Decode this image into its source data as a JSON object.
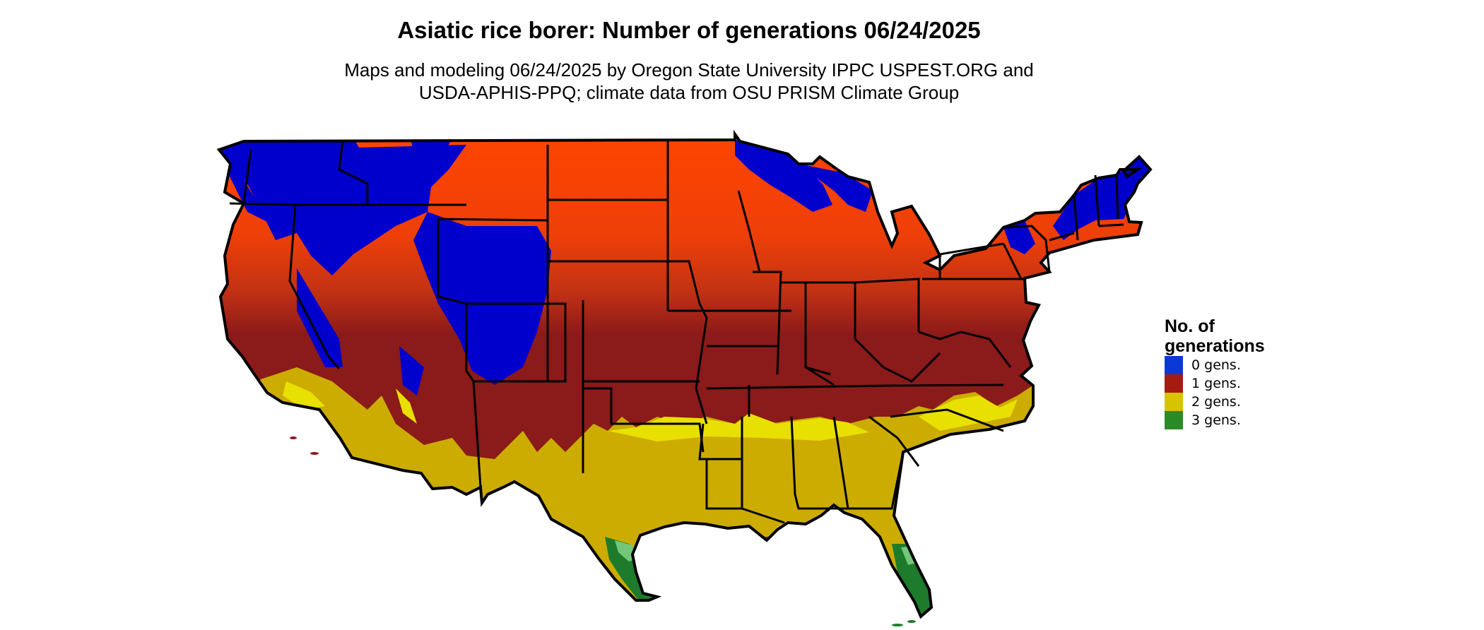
{
  "title": "Asiatic rice borer: Number of generations 06/24/2025",
  "subtitle_line1": "Maps and modeling 06/24/2025 by Oregon State University IPPC USPEST.ORG and",
  "subtitle_line2": "USDA-APHIS-PPQ; climate data from OSU PRISM Climate Group",
  "legend": {
    "title_line1": "No. of",
    "title_line2": "generations",
    "items": [
      {
        "label": "0 gens.",
        "color": "#0a38d6"
      },
      {
        "label": "1 gens.",
        "color": "#a51b12"
      },
      {
        "label": "2 gens.",
        "color": "#d6c400"
      },
      {
        "label": "3 gens.",
        "color": "#2b8a26"
      }
    ]
  },
  "map_colors": {
    "zero_generations": "#0000cc",
    "one_generation_north": "#ff4500",
    "one_generation_mid": "#c33214",
    "one_generation_south": "#8b1a1a",
    "two_generations": "#ccac00",
    "two_generations_light": "#e8e000",
    "three_generations": "#1e7b2c",
    "three_generations_light": "#74c67a",
    "state_borders": "#000000"
  }
}
